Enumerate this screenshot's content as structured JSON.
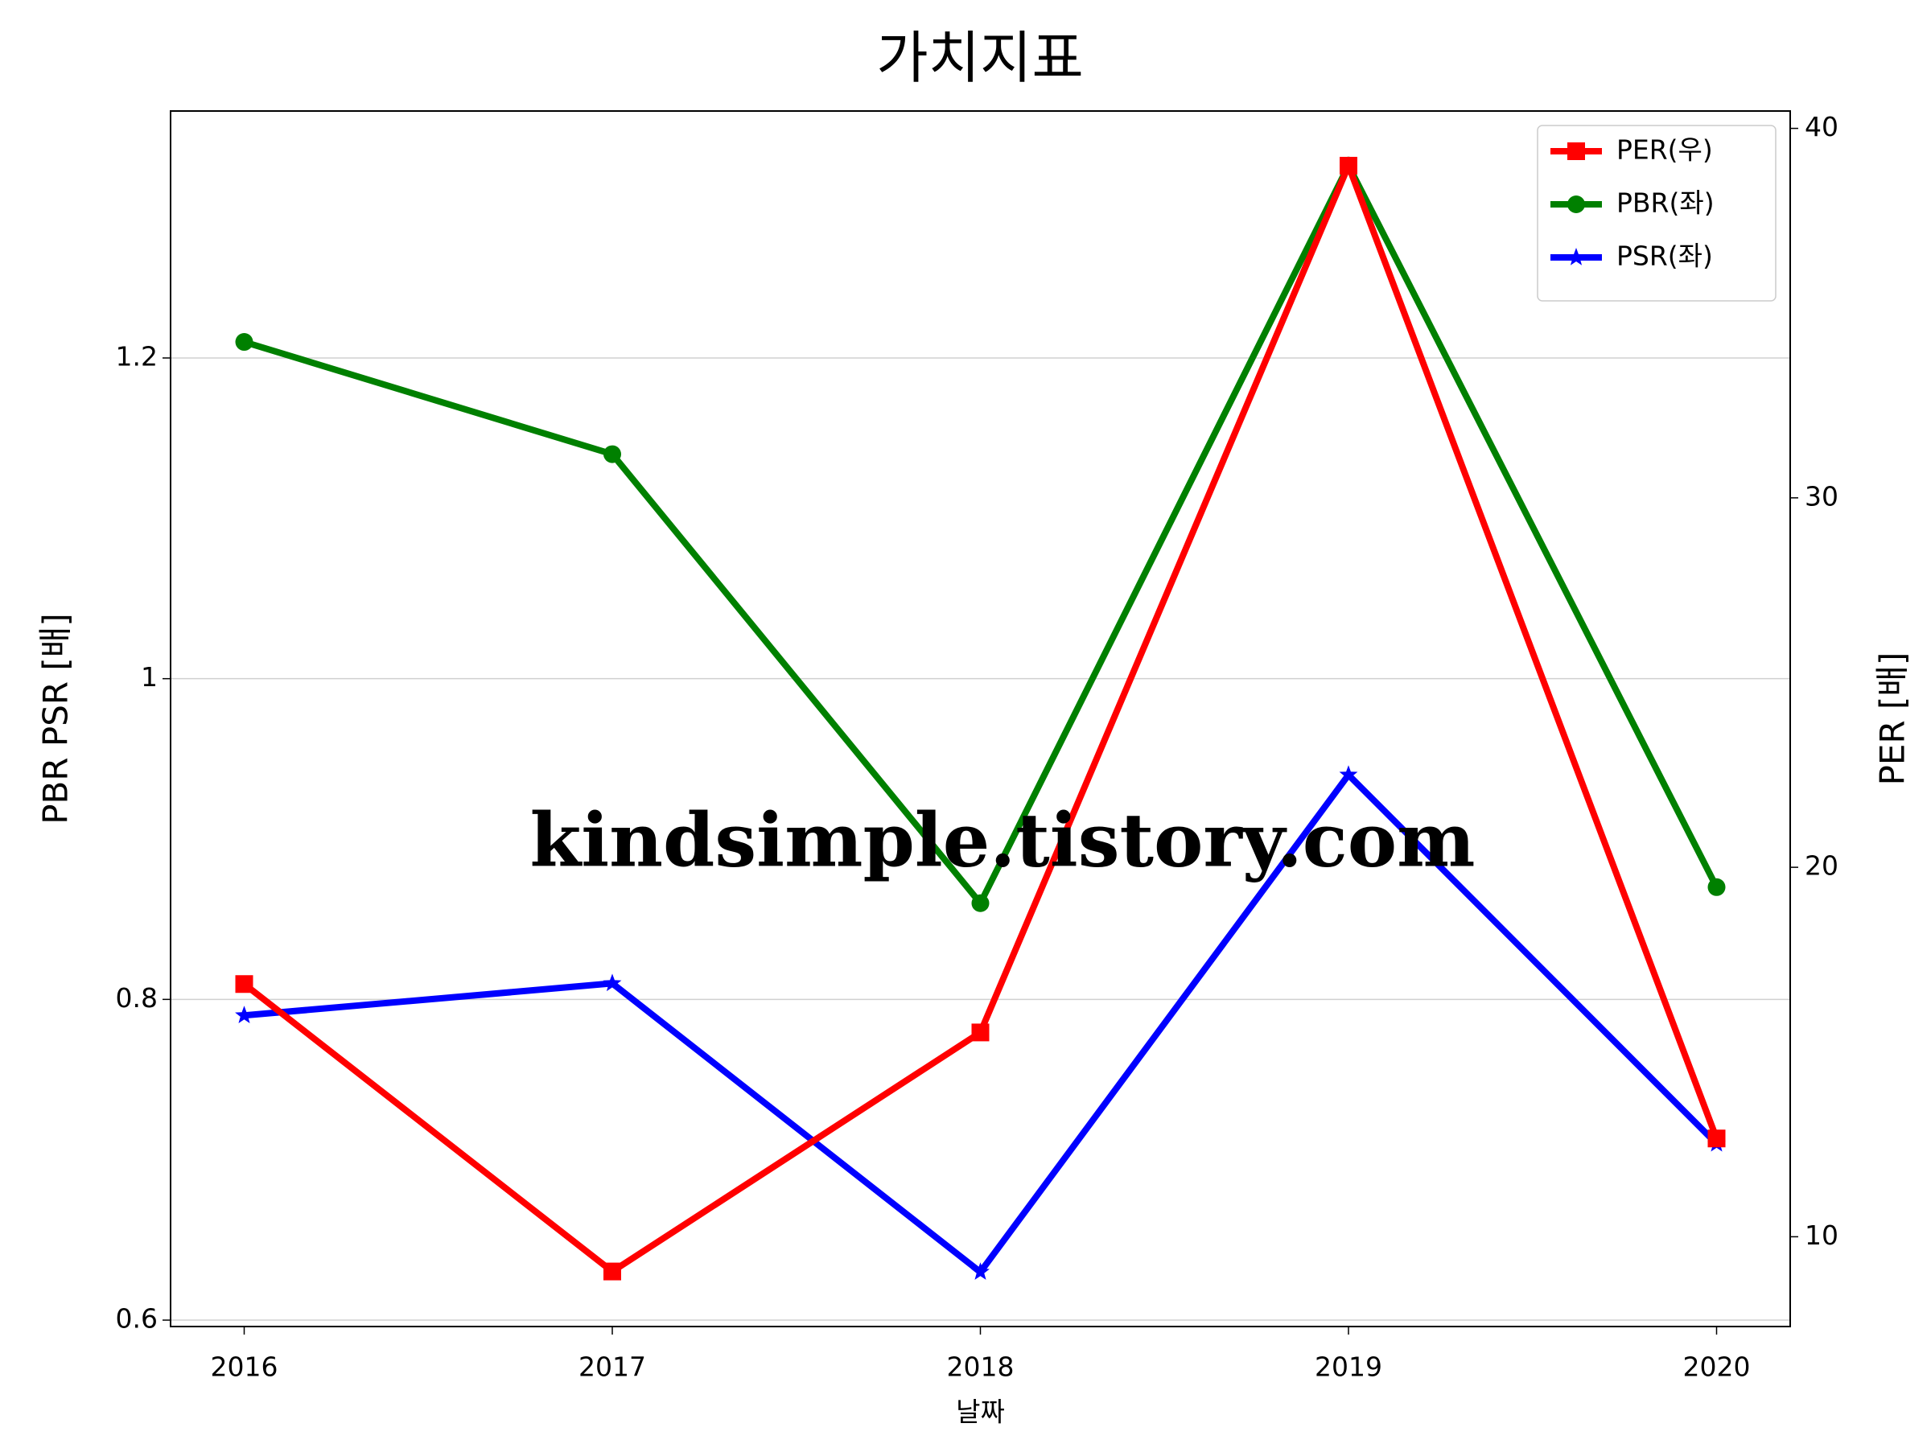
{
  "chart_data": {
    "type": "line",
    "title": "가치지표",
    "xlabel": "날짜",
    "ylabel": "PBR PSR [배]",
    "y2label": "PER [배]",
    "ylabel_color": "#008000",
    "y2label_color": "#ff0000",
    "watermark": "kindsimple.tistory.com",
    "x": [
      2016,
      2017,
      2018,
      2019,
      2020
    ],
    "xlim": [
      2015.8,
      2020.2
    ],
    "xticks": [
      2016,
      2017,
      2018,
      2019,
      2020
    ],
    "ylim": [
      0.596,
      1.354
    ],
    "yticks": [
      0.6,
      0.8,
      1.0,
      1.2
    ],
    "y2lim": [
      7.57,
      40.47
    ],
    "y2ticks": [
      10,
      20,
      30,
      40
    ],
    "grid": true,
    "legend": "upper right",
    "series": [
      {
        "name": "PER(우)",
        "color": "#ff0000",
        "marker": "square",
        "axis": "y2",
        "values": [
          16.84,
          9.06,
          15.53,
          38.99,
          12.66
        ]
      },
      {
        "name": "PBR(좌)",
        "color": "#008000",
        "marker": "circle",
        "values": [
          1.21,
          1.14,
          0.86,
          1.32,
          0.87
        ]
      },
      {
        "name": "PSR(좌)",
        "color": "#0000ff",
        "marker": "star",
        "values": [
          0.79,
          0.81,
          0.63,
          0.94,
          0.71
        ]
      }
    ]
  }
}
